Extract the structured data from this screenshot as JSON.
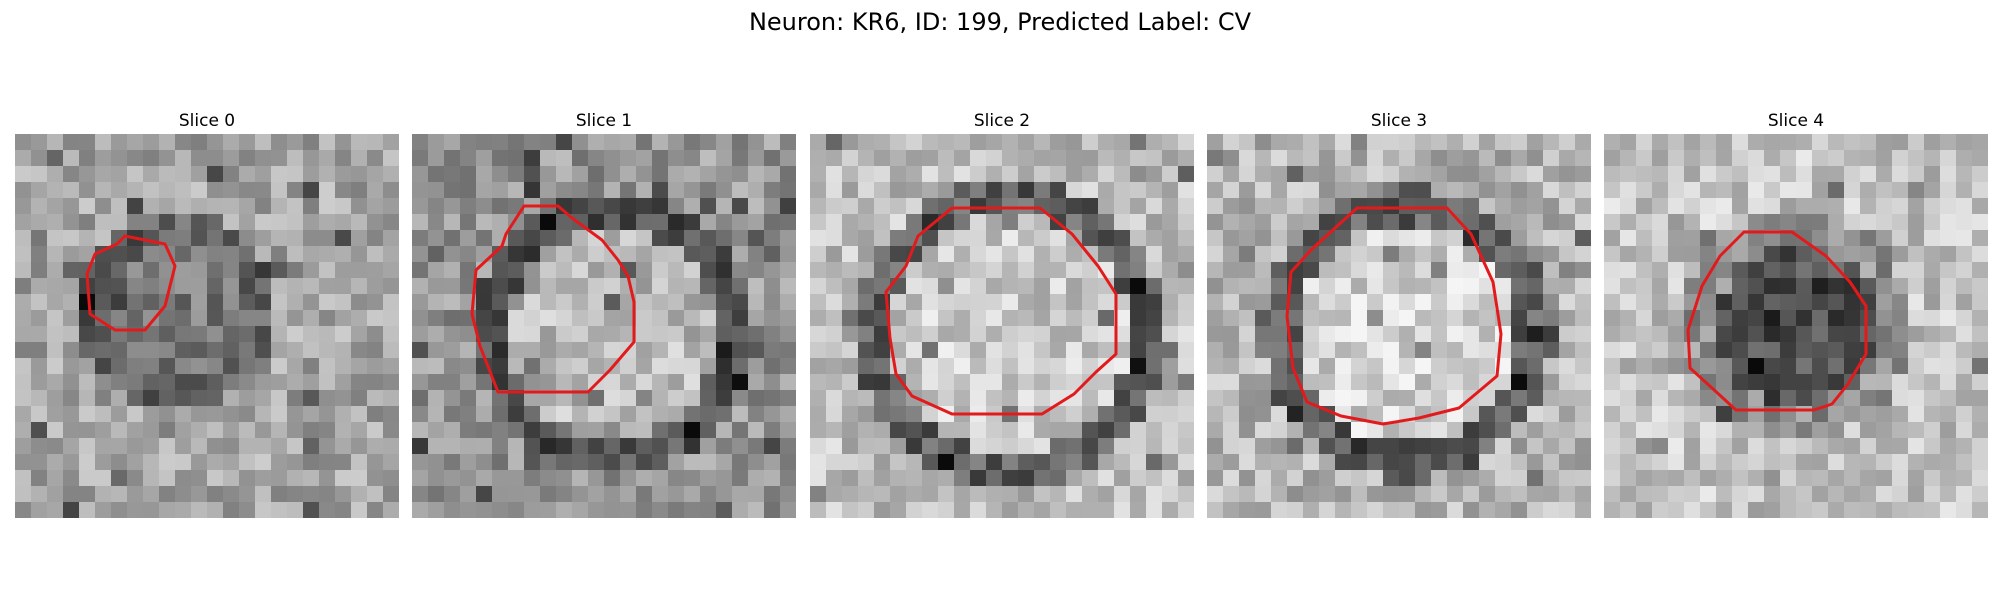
{
  "figure": {
    "title": "Neuron: KR6, ID: 199, Predicted Label: CV"
  },
  "overlay": {
    "contour_color": "#e31a1c"
  },
  "panels": [
    {
      "title": "Slice 0"
    },
    {
      "title": "Slice 1"
    },
    {
      "title": "Slice 2"
    },
    {
      "title": "Slice 3"
    },
    {
      "title": "Slice 4"
    }
  ]
}
